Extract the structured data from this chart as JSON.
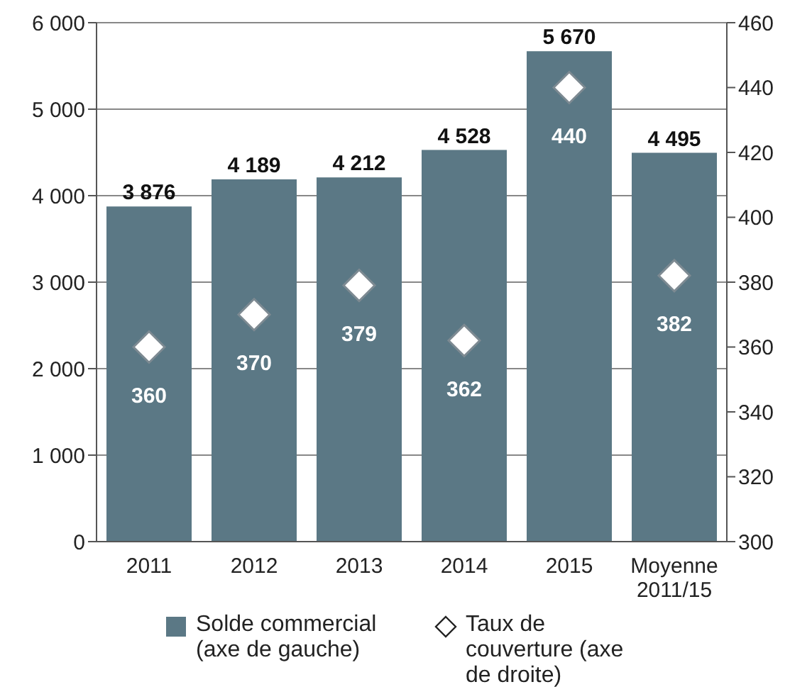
{
  "chart_data": {
    "type": "bar",
    "categories": [
      "2011",
      "2012",
      "2013",
      "2014",
      "2015",
      "Moyenne 2011/15"
    ],
    "series": [
      {
        "name": "Solde commercial (axe de gauche)",
        "color": "#5b7885",
        "values": [
          3876,
          4189,
          4212,
          4528,
          5670,
          4495
        ],
        "value_labels": [
          "3 876",
          "4 189",
          "4 212",
          "4 528",
          "5 670",
          "4 495"
        ]
      },
      {
        "name": "Taux de couverture (axe de droite)",
        "type": "scatter",
        "axis": "y2",
        "marker": "diamond",
        "color": "#ffffff",
        "values": [
          360,
          370,
          379,
          362,
          440,
          382
        ],
        "value_labels": [
          "360",
          "370",
          "379",
          "362",
          "440",
          "382"
        ]
      }
    ],
    "ylim": [
      0,
      6000
    ],
    "yticks": [
      0,
      {
        "value": 1000,
        "label": "1 000"
      },
      {
        "value": 2000,
        "label": "2 000"
      },
      {
        "value": 3000,
        "label": "3 000"
      },
      {
        "value": 4000,
        "label": "4 000"
      },
      {
        "value": 5000,
        "label": "5 000"
      },
      {
        "value": 6000,
        "label": "6 000"
      }
    ],
    "y2lim": [
      300,
      460
    ],
    "y2ticks": [
      300,
      320,
      340,
      360,
      380,
      400,
      420,
      440,
      460
    ],
    "grid": "y",
    "legend": "bottom"
  }
}
